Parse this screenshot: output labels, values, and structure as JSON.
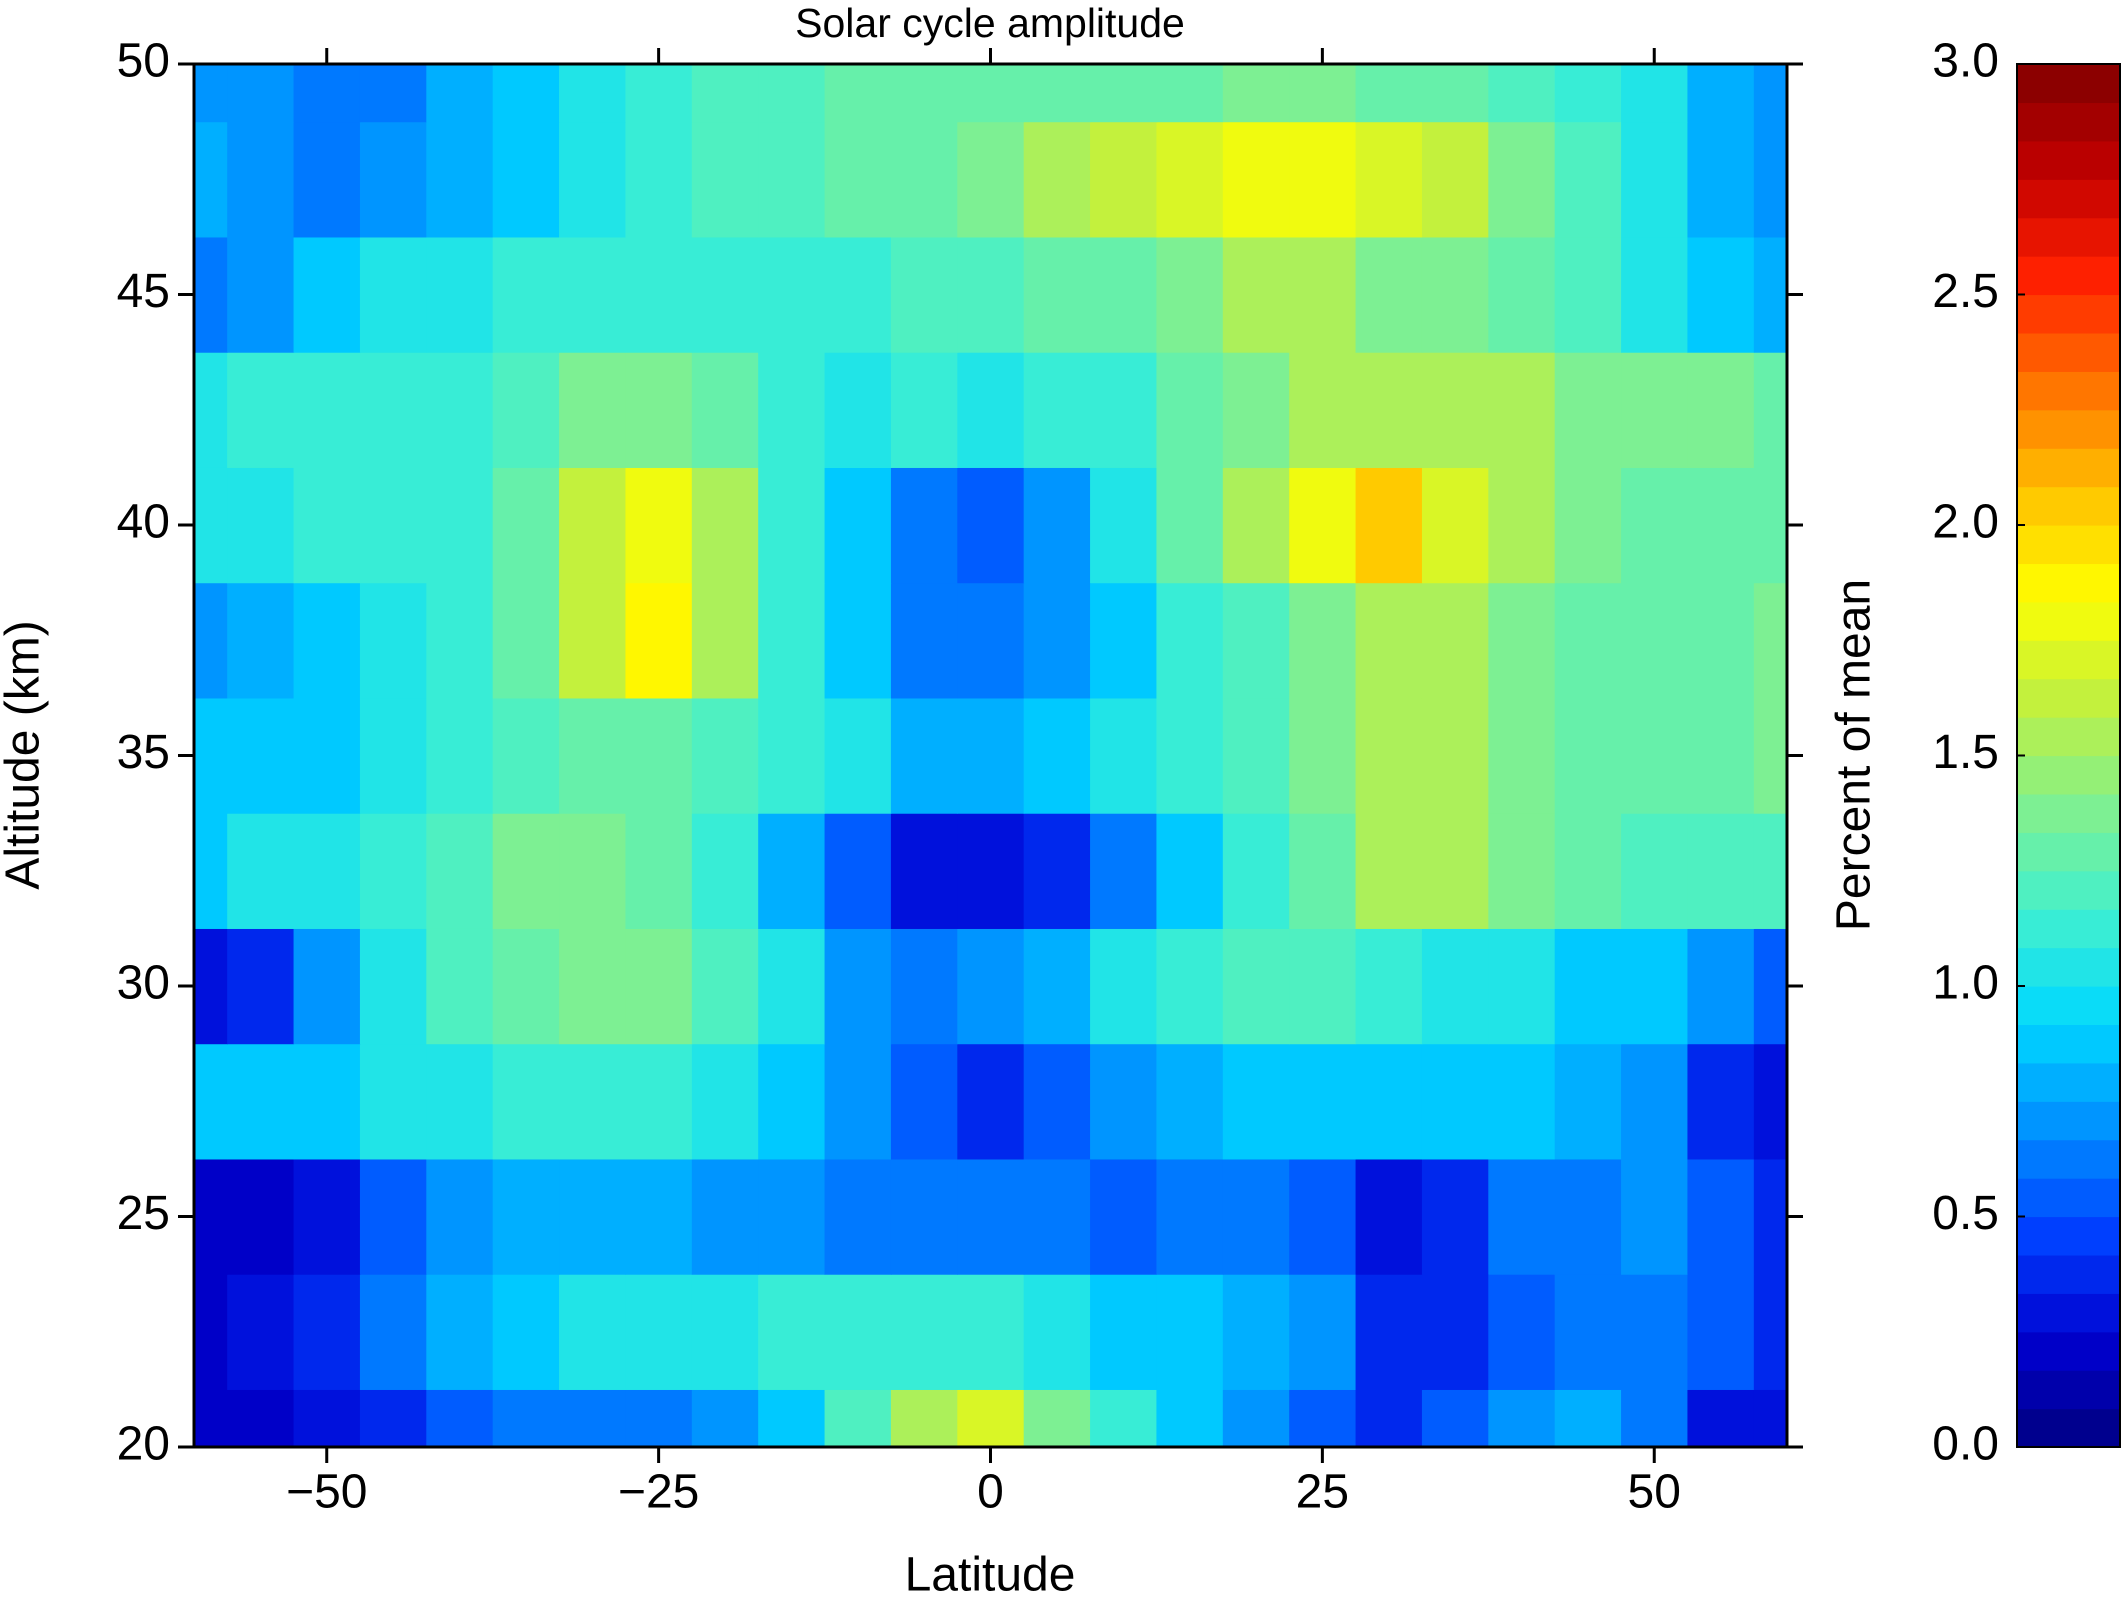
{
  "chart_data": {
    "type": "contour",
    "title": "Solar cycle amplitude",
    "x_label": "Latitude",
    "y_label": "Altitude (km)",
    "colorbar_label": "Percent of mean",
    "x": [
      -60,
      -55,
      -50,
      -45,
      -40,
      -35,
      -30,
      -25,
      -20,
      -15,
      -10,
      -5,
      0,
      5,
      10,
      15,
      20,
      25,
      30,
      35,
      40,
      45,
      50,
      55,
      60
    ],
    "y": [
      20,
      22.5,
      25,
      27.5,
      30,
      32.5,
      35,
      37.5,
      40,
      42.5,
      45,
      47.5,
      50
    ],
    "z": [
      [
        0.2,
        0.2,
        0.3,
        0.4,
        0.5,
        0.6,
        0.6,
        0.6,
        0.7,
        0.9,
        1.2,
        1.5,
        1.7,
        1.4,
        1.1,
        0.9,
        0.7,
        0.5,
        0.4,
        0.5,
        0.7,
        0.8,
        0.6,
        0.3,
        0.3
      ],
      [
        0.2,
        0.3,
        0.4,
        0.6,
        0.8,
        0.9,
        1.0,
        1.0,
        1.0,
        1.1,
        1.1,
        1.1,
        1.1,
        1.0,
        0.9,
        0.9,
        0.8,
        0.7,
        0.4,
        0.4,
        0.5,
        0.6,
        0.6,
        0.5,
        0.4
      ],
      [
        0.2,
        0.2,
        0.3,
        0.5,
        0.7,
        0.8,
        0.8,
        0.8,
        0.7,
        0.7,
        0.6,
        0.6,
        0.6,
        0.6,
        0.5,
        0.6,
        0.6,
        0.5,
        0.3,
        0.4,
        0.6,
        0.6,
        0.7,
        0.5,
        0.4
      ],
      [
        0.9,
        0.9,
        0.9,
        1.0,
        1.0,
        1.1,
        1.1,
        1.1,
        1.0,
        0.9,
        0.7,
        0.5,
        0.4,
        0.5,
        0.7,
        0.8,
        0.9,
        0.9,
        0.9,
        0.9,
        0.9,
        0.8,
        0.7,
        0.4,
        0.3
      ],
      [
        0.3,
        0.4,
        0.7,
        1.0,
        1.2,
        1.3,
        1.4,
        1.4,
        1.2,
        1.0,
        0.7,
        0.6,
        0.7,
        0.8,
        1.0,
        1.1,
        1.2,
        1.2,
        1.1,
        1.0,
        1.0,
        0.9,
        0.9,
        0.7,
        0.5
      ],
      [
        0.9,
        1.0,
        1.0,
        1.1,
        1.2,
        1.4,
        1.4,
        1.3,
        1.1,
        0.8,
        0.5,
        0.3,
        0.3,
        0.4,
        0.6,
        0.9,
        1.1,
        1.3,
        1.5,
        1.5,
        1.4,
        1.3,
        1.2,
        1.2,
        1.2
      ],
      [
        0.9,
        0.9,
        0.9,
        1.0,
        1.1,
        1.2,
        1.3,
        1.3,
        1.2,
        1.1,
        1.0,
        0.8,
        0.8,
        0.9,
        1.0,
        1.1,
        1.2,
        1.4,
        1.5,
        1.5,
        1.4,
        1.3,
        1.3,
        1.3,
        1.4
      ],
      [
        0.7,
        0.8,
        0.9,
        1.0,
        1.1,
        1.3,
        1.6,
        1.9,
        1.5,
        1.1,
        0.9,
        0.6,
        0.6,
        0.7,
        0.9,
        1.1,
        1.2,
        1.4,
        1.5,
        1.5,
        1.4,
        1.3,
        1.3,
        1.3,
        1.4
      ],
      [
        1.0,
        1.0,
        1.1,
        1.1,
        1.1,
        1.3,
        1.6,
        1.8,
        1.5,
        1.1,
        0.9,
        0.6,
        0.5,
        0.7,
        1.0,
        1.3,
        1.5,
        1.8,
        2.0,
        1.7,
        1.5,
        1.4,
        1.3,
        1.3,
        1.3
      ],
      [
        1.0,
        1.1,
        1.1,
        1.1,
        1.1,
        1.2,
        1.4,
        1.4,
        1.3,
        1.1,
        1.0,
        1.1,
        1.0,
        1.1,
        1.1,
        1.3,
        1.4,
        1.5,
        1.5,
        1.5,
        1.5,
        1.4,
        1.4,
        1.4,
        1.3
      ],
      [
        0.6,
        0.7,
        0.9,
        1.0,
        1.0,
        1.1,
        1.1,
        1.1,
        1.1,
        1.1,
        1.1,
        1.2,
        1.2,
        1.3,
        1.3,
        1.4,
        1.5,
        1.5,
        1.4,
        1.4,
        1.3,
        1.2,
        1.0,
        0.9,
        0.8
      ],
      [
        0.8,
        0.7,
        0.6,
        0.7,
        0.8,
        0.9,
        1.0,
        1.1,
        1.2,
        1.2,
        1.3,
        1.3,
        1.4,
        1.5,
        1.6,
        1.7,
        1.8,
        1.8,
        1.7,
        1.6,
        1.4,
        1.2,
        1.0,
        0.8,
        0.7
      ],
      [
        0.7,
        0.7,
        0.6,
        0.6,
        0.8,
        0.9,
        1.0,
        1.1,
        1.2,
        1.2,
        1.3,
        1.3,
        1.3,
        1.3,
        1.3,
        1.3,
        1.4,
        1.4,
        1.3,
        1.3,
        1.2,
        1.1,
        1.0,
        0.8,
        0.7
      ]
    ],
    "xlim": [
      -60,
      60
    ],
    "xticks": [
      {
        "value": -50,
        "label": "−50"
      },
      {
        "value": -25,
        "label": "−25"
      },
      0,
      25,
      {
        "value": 50,
        "label": "50"
      }
    ],
    "ylim": [
      20,
      50
    ],
    "yticks": [
      20,
      25,
      30,
      35,
      40,
      45,
      50
    ],
    "zlim": [
      0,
      3
    ],
    "zticks": [
      {
        "value": 0,
        "label": "0.0"
      },
      {
        "value": 0.5,
        "label": "0.5"
      },
      {
        "value": 1,
        "label": "1.0"
      },
      {
        "value": 1.5,
        "label": "1.5"
      },
      {
        "value": 2,
        "label": "2.0"
      },
      {
        "value": 2.5,
        "label": "2.5"
      },
      {
        "value": 3,
        "label": "3.0"
      }
    ],
    "levels": 36,
    "colormap": [
      "#00007f",
      "#0000d0",
      "#0040ff",
      "#0090ff",
      "#00d8ff",
      "#40f0d0",
      "#80f090",
      "#c0f040",
      "#ffff00",
      "#ffc000",
      "#ff7000",
      "#ff2000",
      "#c00000",
      "#800000"
    ]
  }
}
